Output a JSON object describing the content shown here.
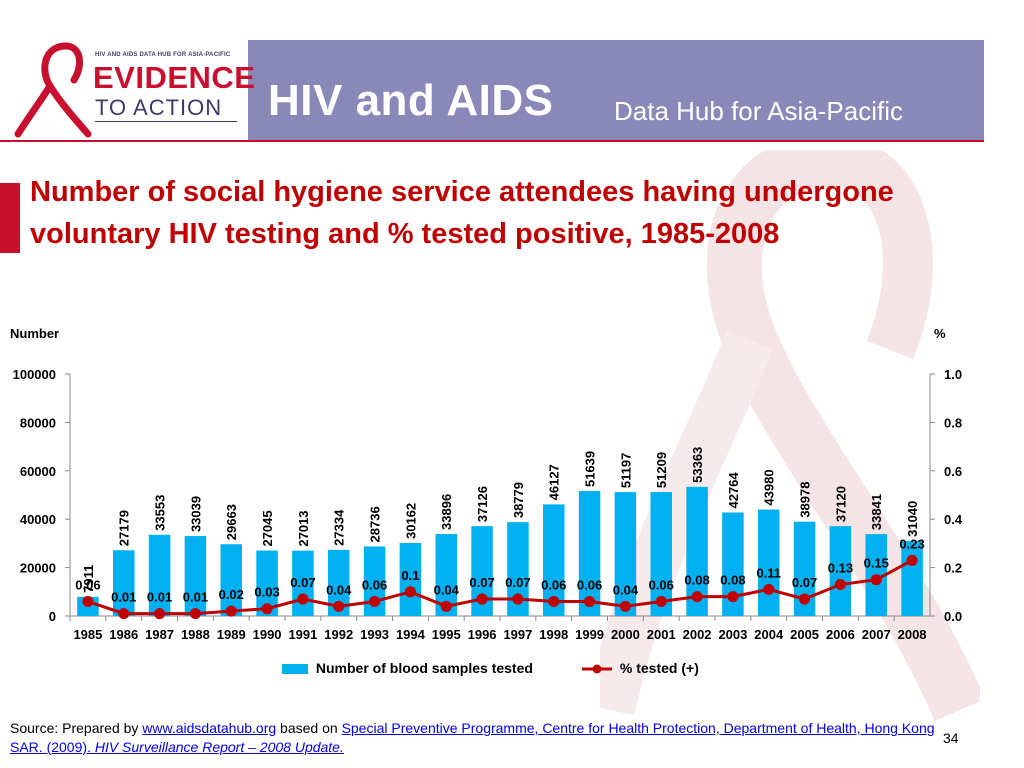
{
  "logo": {
    "small_text": "HIV AND AIDS DATA HUB FOR ASIA-PACIFIC",
    "line1": "EVIDENCE",
    "line2": "TO ACTION"
  },
  "header": {
    "title_main": "HIV and AIDS",
    "title_sub": "Data Hub for Asia-Pacific"
  },
  "colors": {
    "bar": "#00b0f0",
    "line": "#c00000",
    "banner": "#8a88b8",
    "title": "#c00000"
  },
  "chart_data": {
    "type": "bar",
    "title": "Number of social hygiene service attendees having undergone voluntary HIV testing and % tested positive, 1985-2008",
    "ylabel_left": "Number",
    "ylabel_right": "%",
    "categories": [
      "1985",
      "1986",
      "1987",
      "1988",
      "1989",
      "1990",
      "1991",
      "1992",
      "1993",
      "1994",
      "1995",
      "1996",
      "1997",
      "1998",
      "1999",
      "2000",
      "2001",
      "2002",
      "2003",
      "2004",
      "2005",
      "2006",
      "2007",
      "2008"
    ],
    "ylim_left": [
      0,
      100000
    ],
    "yticks_left": [
      "0",
      "20000",
      "40000",
      "60000",
      "80000",
      "100000"
    ],
    "ylim_right": [
      0,
      1.0
    ],
    "yticks_right": [
      "0.0",
      "0.2",
      "0.4",
      "0.6",
      "0.8",
      "1.0"
    ],
    "series": [
      {
        "name": "Number of blood samples tested",
        "type": "bar",
        "values": [
          7911,
          27179,
          33553,
          33039,
          29663,
          27045,
          27013,
          27334,
          28736,
          30162,
          33896,
          37126,
          38779,
          46127,
          51639,
          51197,
          51209,
          53363,
          42764,
          43980,
          38978,
          37120,
          33841,
          31040
        ],
        "labels": [
          "7911",
          "27179",
          "33553",
          "33039",
          "29663",
          "27045",
          "27013",
          "27334",
          "28736",
          "30162",
          "33896",
          "37126",
          "38779",
          "46127",
          "51639",
          "51197",
          "51209",
          "53363",
          "42764",
          "43980",
          "38978",
          "37120",
          "33841",
          "31040"
        ]
      },
      {
        "name": "% tested (+)",
        "type": "line",
        "values": [
          0.06,
          0.01,
          0.01,
          0.01,
          0.02,
          0.03,
          0.07,
          0.04,
          0.06,
          0.1,
          0.04,
          0.07,
          0.07,
          0.06,
          0.06,
          0.04,
          0.06,
          0.08,
          0.08,
          0.11,
          0.07,
          0.13,
          0.15,
          0.23
        ],
        "labels": [
          "0.06",
          "0.01",
          "0.01",
          "0.01",
          "0.02",
          "0.03",
          "0.07",
          "0.04",
          "0.06",
          "0.1",
          "0.04",
          "0.07",
          "0.07",
          "0.06",
          "0.06",
          "0.04",
          "0.06",
          "0.08",
          "0.08",
          "0.11",
          "0.07",
          "0.13",
          "0.15",
          "0.23"
        ]
      }
    ]
  },
  "source": {
    "prefix": "Source: Prepared by ",
    "link1": "www.aidsdatahub.org",
    "middle": "  based on ",
    "link2": "Special Preventive Programme, Centre for Health Protection, Department of Health, Hong Kong SAR. (2009). ",
    "link3_italic": "HIV Surveillance Report – 2008 Update."
  },
  "page_number": "34"
}
